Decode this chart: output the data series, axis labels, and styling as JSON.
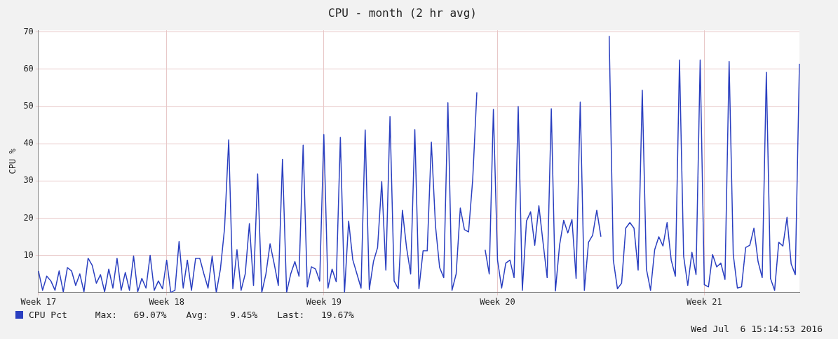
{
  "chart_data": {
    "type": "line",
    "title": "CPU - month (2 hr avg)",
    "ylabel": "CPU %",
    "categories": [
      "Week 17",
      null,
      null,
      null,
      null,
      null,
      null,
      null,
      null,
      null,
      null,
      null,
      null,
      null,
      null,
      null,
      null,
      null,
      null,
      null,
      null,
      null,
      null,
      null,
      null,
      null,
      null,
      null,
      null,
      null,
      null,
      "Week 18",
      null,
      null,
      null,
      null,
      null,
      null,
      null,
      null,
      null,
      null,
      null,
      null,
      null,
      null,
      null,
      null,
      null,
      null,
      null,
      null,
      null,
      null,
      null,
      null,
      null,
      null,
      null,
      null,
      null,
      null,
      null,
      null,
      null,
      null,
      null,
      null,
      null,
      "Week 19",
      null,
      null,
      null,
      null,
      null,
      null,
      null,
      null,
      null,
      null,
      null,
      null,
      null,
      null,
      null,
      null,
      null,
      null,
      null,
      null,
      null,
      null,
      null,
      null,
      null,
      null,
      null,
      null,
      null,
      null,
      null,
      null,
      null,
      null,
      null,
      null,
      null,
      null,
      null,
      null,
      null,
      "Week 20",
      null,
      null,
      null,
      null,
      null,
      null,
      null,
      null,
      null,
      null,
      null,
      null,
      null,
      null,
      null,
      null,
      null,
      null,
      null,
      null,
      null,
      null,
      null,
      null,
      null,
      null,
      null,
      null,
      null,
      null,
      null,
      null,
      null,
      null,
      null,
      null,
      null,
      null,
      null,
      null,
      null,
      null,
      null,
      null,
      null,
      null,
      null,
      null,
      null,
      "Week 21",
      null,
      null,
      null,
      null,
      null,
      null,
      null,
      null,
      null,
      null,
      null,
      null,
      null,
      null,
      null,
      null,
      null,
      null,
      null,
      null,
      null,
      null,
      null
    ],
    "ylim": [
      0,
      70.5
    ],
    "yticks": [
      10,
      20,
      30,
      40,
      50,
      60,
      70
    ],
    "grid": true,
    "legend": "bottom left",
    "marker": "none",
    "line_style": "solid",
    "annotations": [
      "Max:   69.07%",
      "Avg:    9.45%",
      "Last:   19.67%",
      "Wed Jul  6 15:14:53 2016"
    ],
    "series": [
      {
        "name": "CPU Pct",
        "color": "#2a3fc0",
        "values": [
          5.8,
          0.6,
          4.4,
          3.1,
          0.6,
          5.8,
          0.2,
          6.7,
          5.8,
          1.9,
          5,
          0.2,
          9.2,
          7.3,
          2.5,
          4.8,
          0.2,
          6.3,
          1.2,
          9.2,
          0.6,
          5.4,
          0.6,
          9.8,
          0.2,
          3.8,
          1.2,
          10,
          0.6,
          3.1,
          1,
          8.7,
          0,
          0.6,
          13.7,
          1.2,
          8.7,
          0.6,
          9.2,
          9.2,
          5,
          1.2,
          9.8,
          0,
          6.3,
          17.3,
          41,
          1,
          11.5,
          0.6,
          5,
          18.5,
          1.9,
          31.9,
          0,
          5,
          13.1,
          7.7,
          1.9,
          35.8,
          0,
          5,
          8.3,
          4.4,
          39.6,
          1.5,
          6.9,
          6.3,
          3.1,
          42.5,
          1.2,
          6.3,
          2.9,
          41.7,
          0,
          19.2,
          8.8,
          5,
          1.2,
          43.7,
          0.8,
          8.3,
          12.1,
          29.8,
          6,
          47.3,
          3.1,
          1,
          22.1,
          12.1,
          5,
          43.8,
          1,
          11.2,
          11.2,
          40.4,
          17.9,
          6.7,
          4,
          51,
          0.6,
          5,
          22.7,
          16.9,
          16.3,
          30.4,
          53.8,
          null,
          11.5,
          5,
          49.2,
          8.7,
          1.2,
          7.9,
          8.7,
          4,
          50,
          0.6,
          19.2,
          21.7,
          12.7,
          23.3,
          13.5,
          4,
          49.4,
          0.4,
          12.7,
          19.4,
          16,
          19.6,
          3.8,
          51.2,
          0.6,
          13.5,
          15.4,
          22.1,
          15,
          null,
          69,
          8.7,
          1,
          2.5,
          17.3,
          18.8,
          17.3,
          6,
          54.4,
          6.3,
          0.6,
          11.5,
          15,
          12.5,
          18.8,
          8.7,
          4.4,
          62.5,
          9.8,
          1.9,
          10.8,
          4.8,
          62.5,
          2.1,
          1.5,
          10.2,
          6.9,
          7.9,
          3.5,
          62.1,
          10.2,
          1.2,
          1.5,
          12.1,
          12.7,
          17.3,
          8.3,
          4,
          59.2,
          3.8,
          0.6,
          13.5,
          12.5,
          20.2,
          7.7,
          4.8,
          61.5
        ]
      }
    ]
  }
}
